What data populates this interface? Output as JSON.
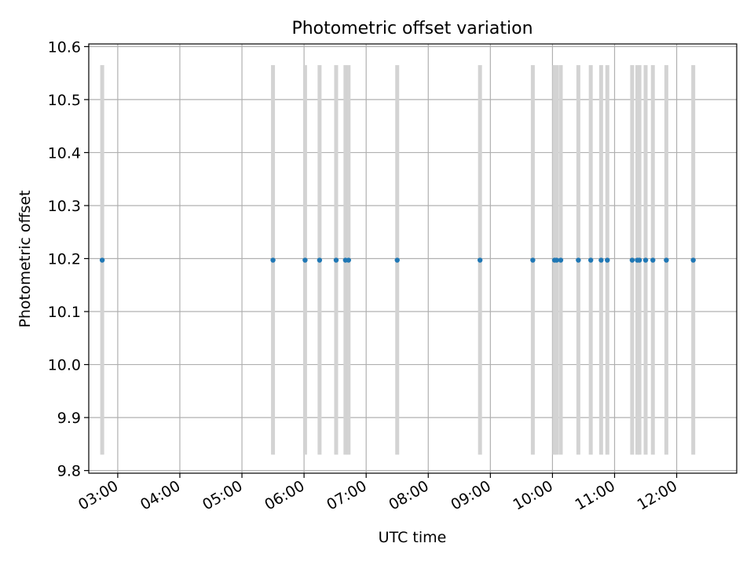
{
  "chart_data": {
    "type": "scatter",
    "title": "Photometric offset variation",
    "xlabel": "UTC time",
    "ylabel": "Photometric offset",
    "x_tick_labels": [
      "03:00",
      "04:00",
      "05:00",
      "06:00",
      "07:00",
      "08:00",
      "09:00",
      "10:00",
      "11:00",
      "12:00"
    ],
    "x_ticks": [
      "03:00",
      "04:00",
      "05:00",
      "06:00",
      "07:00",
      "08:00",
      "09:00",
      "10:00",
      "11:00",
      "12:00"
    ],
    "y_tick_labels": [
      "9.8",
      "9.9",
      "10.0",
      "10.1",
      "10.2",
      "10.3",
      "10.4",
      "10.5",
      "10.6"
    ],
    "y_ticks": [
      9.8,
      9.9,
      10.0,
      10.1,
      10.2,
      10.3,
      10.4,
      10.5,
      10.6
    ],
    "xlim": [
      "02:32",
      "12:58"
    ],
    "ylim": [
      9.795,
      10.605
    ],
    "grid": true,
    "points": {
      "x": [
        "02:45",
        "05:30",
        "06:01",
        "06:15",
        "06:31",
        "06:40",
        "06:43",
        "07:30",
        "08:50",
        "09:41",
        "10:02",
        "10:04",
        "10:08",
        "10:25",
        "10:37",
        "10:47",
        "10:53",
        "11:17",
        "11:22",
        "11:24",
        "11:30",
        "11:37",
        "11:50",
        "12:16"
      ],
      "y": [
        10.197,
        10.197,
        10.197,
        10.197,
        10.197,
        10.197,
        10.197,
        10.197,
        10.197,
        10.197,
        10.197,
        10.197,
        10.197,
        10.197,
        10.197,
        10.197,
        10.197,
        10.197,
        10.197,
        10.197,
        10.197,
        10.197,
        10.197,
        10.197
      ]
    },
    "error_bars": {
      "low": 9.83,
      "high": 10.565
    },
    "colors": {
      "points": "#1f77b4",
      "error_bars": "#d3d3d3",
      "grid": "#b0b0b0"
    }
  }
}
